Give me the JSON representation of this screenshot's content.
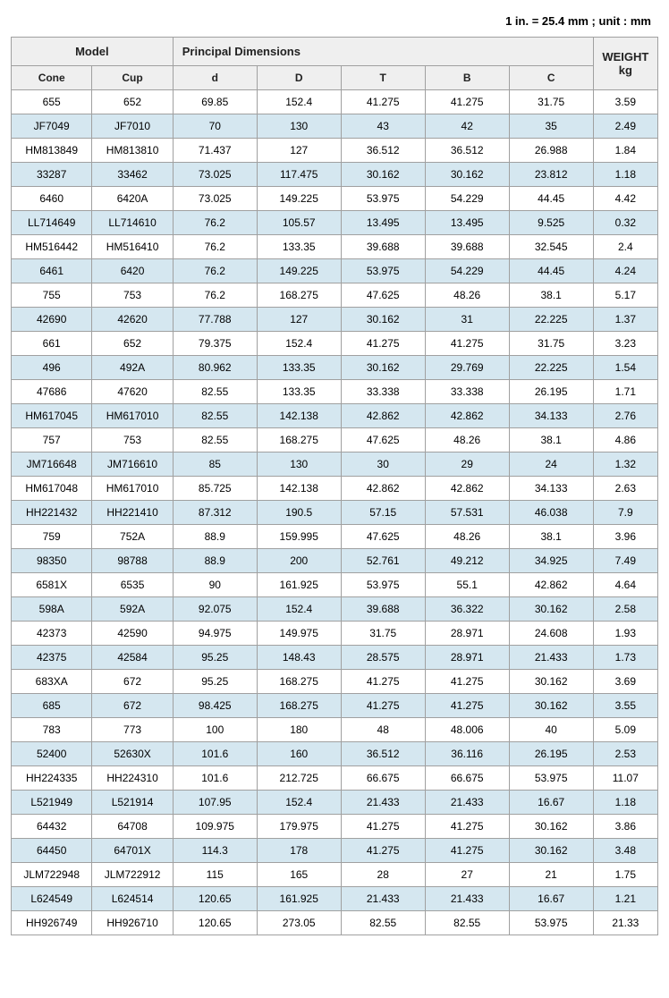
{
  "unit_note": "1 in. = 25.4 mm ; unit : mm",
  "headers": {
    "model": "Model",
    "principal": "Principal Dimensions",
    "weight_l1": "WEIGHT",
    "weight_l2": "kg",
    "cone": "Cone",
    "cup": "Cup",
    "d": "d",
    "D": "D",
    "T": "T",
    "B": "B",
    "C": "C"
  },
  "colors": {
    "header_bg": "#efefef",
    "even_row_bg": "#d5e7f0",
    "odd_row_bg": "#ffffff",
    "border": "#a0a0a0",
    "text": "#000000"
  },
  "rows": [
    {
      "cone": "655",
      "cup": "652",
      "d": "69.85",
      "D": "152.4",
      "T": "41.275",
      "B": "41.275",
      "C": "31.75",
      "wt": "3.59"
    },
    {
      "cone": "JF7049",
      "cup": "JF7010",
      "d": "70",
      "D": "130",
      "T": "43",
      "B": "42",
      "C": "35",
      "wt": "2.49"
    },
    {
      "cone": "HM813849",
      "cup": "HM813810",
      "d": "71.437",
      "D": "127",
      "T": "36.512",
      "B": "36.512",
      "C": "26.988",
      "wt": "1.84"
    },
    {
      "cone": "33287",
      "cup": "33462",
      "d": "73.025",
      "D": "117.475",
      "T": "30.162",
      "B": "30.162",
      "C": "23.812",
      "wt": "1.18"
    },
    {
      "cone": "6460",
      "cup": "6420A",
      "d": "73.025",
      "D": "149.225",
      "T": "53.975",
      "B": "54.229",
      "C": "44.45",
      "wt": "4.42"
    },
    {
      "cone": "LL714649",
      "cup": "LL714610",
      "d": "76.2",
      "D": "105.57",
      "T": "13.495",
      "B": "13.495",
      "C": "9.525",
      "wt": "0.32"
    },
    {
      "cone": "HM516442",
      "cup": "HM516410",
      "d": "76.2",
      "D": "133.35",
      "T": "39.688",
      "B": "39.688",
      "C": "32.545",
      "wt": "2.4"
    },
    {
      "cone": "6461",
      "cup": "6420",
      "d": "76.2",
      "D": "149.225",
      "T": "53.975",
      "B": "54.229",
      "C": "44.45",
      "wt": "4.24"
    },
    {
      "cone": "755",
      "cup": "753",
      "d": "76.2",
      "D": "168.275",
      "T": "47.625",
      "B": "48.26",
      "C": "38.1",
      "wt": "5.17"
    },
    {
      "cone": "42690",
      "cup": "42620",
      "d": "77.788",
      "D": "127",
      "T": "30.162",
      "B": "31",
      "C": "22.225",
      "wt": "1.37"
    },
    {
      "cone": "661",
      "cup": "652",
      "d": "79.375",
      "D": "152.4",
      "T": "41.275",
      "B": "41.275",
      "C": "31.75",
      "wt": "3.23"
    },
    {
      "cone": "496",
      "cup": "492A",
      "d": "80.962",
      "D": "133.35",
      "T": "30.162",
      "B": "29.769",
      "C": "22.225",
      "wt": "1.54"
    },
    {
      "cone": "47686",
      "cup": "47620",
      "d": "82.55",
      "D": "133.35",
      "T": "33.338",
      "B": "33.338",
      "C": "26.195",
      "wt": "1.71"
    },
    {
      "cone": "HM617045",
      "cup": "HM617010",
      "d": "82.55",
      "D": "142.138",
      "T": "42.862",
      "B": "42.862",
      "C": "34.133",
      "wt": "2.76"
    },
    {
      "cone": "757",
      "cup": "753",
      "d": "82.55",
      "D": "168.275",
      "T": "47.625",
      "B": "48.26",
      "C": "38.1",
      "wt": "4.86"
    },
    {
      "cone": "JM716648",
      "cup": "JM716610",
      "d": "85",
      "D": "130",
      "T": "30",
      "B": "29",
      "C": "24",
      "wt": "1.32"
    },
    {
      "cone": "HM617048",
      "cup": "HM617010",
      "d": "85.725",
      "D": "142.138",
      "T": "42.862",
      "B": "42.862",
      "C": "34.133",
      "wt": "2.63"
    },
    {
      "cone": "HH221432",
      "cup": "HH221410",
      "d": "87.312",
      "D": "190.5",
      "T": "57.15",
      "B": "57.531",
      "C": "46.038",
      "wt": "7.9"
    },
    {
      "cone": "759",
      "cup": "752A",
      "d": "88.9",
      "D": "159.995",
      "T": "47.625",
      "B": "48.26",
      "C": "38.1",
      "wt": "3.96"
    },
    {
      "cone": "98350",
      "cup": "98788",
      "d": "88.9",
      "D": "200",
      "T": "52.761",
      "B": "49.212",
      "C": "34.925",
      "wt": "7.49"
    },
    {
      "cone": "6581X",
      "cup": "6535",
      "d": "90",
      "D": "161.925",
      "T": "53.975",
      "B": "55.1",
      "C": "42.862",
      "wt": "4.64"
    },
    {
      "cone": "598A",
      "cup": "592A",
      "d": "92.075",
      "D": "152.4",
      "T": "39.688",
      "B": "36.322",
      "C": "30.162",
      "wt": "2.58"
    },
    {
      "cone": "42373",
      "cup": "42590",
      "d": "94.975",
      "D": "149.975",
      "T": "31.75",
      "B": "28.971",
      "C": "24.608",
      "wt": "1.93"
    },
    {
      "cone": "42375",
      "cup": "42584",
      "d": "95.25",
      "D": "148.43",
      "T": "28.575",
      "B": "28.971",
      "C": "21.433",
      "wt": "1.73"
    },
    {
      "cone": "683XA",
      "cup": "672",
      "d": "95.25",
      "D": "168.275",
      "T": "41.275",
      "B": "41.275",
      "C": "30.162",
      "wt": "3.69"
    },
    {
      "cone": "685",
      "cup": "672",
      "d": "98.425",
      "D": "168.275",
      "T": "41.275",
      "B": "41.275",
      "C": "30.162",
      "wt": "3.55"
    },
    {
      "cone": "783",
      "cup": "773",
      "d": "100",
      "D": "180",
      "T": "48",
      "B": "48.006",
      "C": "40",
      "wt": "5.09"
    },
    {
      "cone": "52400",
      "cup": "52630X",
      "d": "101.6",
      "D": "160",
      "T": "36.512",
      "B": "36.116",
      "C": "26.195",
      "wt": "2.53"
    },
    {
      "cone": "HH224335",
      "cup": "HH224310",
      "d": "101.6",
      "D": "212.725",
      "T": "66.675",
      "B": "66.675",
      "C": "53.975",
      "wt": "11.07"
    },
    {
      "cone": "L521949",
      "cup": "L521914",
      "d": "107.95",
      "D": "152.4",
      "T": "21.433",
      "B": "21.433",
      "C": "16.67",
      "wt": "1.18"
    },
    {
      "cone": "64432",
      "cup": "64708",
      "d": "109.975",
      "D": "179.975",
      "T": "41.275",
      "B": "41.275",
      "C": "30.162",
      "wt": "3.86"
    },
    {
      "cone": "64450",
      "cup": "64701X",
      "d": "114.3",
      "D": "178",
      "T": "41.275",
      "B": "41.275",
      "C": "30.162",
      "wt": "3.48"
    },
    {
      "cone": "JLM722948",
      "cup": "JLM722912",
      "d": "115",
      "D": "165",
      "T": "28",
      "B": "27",
      "C": "21",
      "wt": "1.75"
    },
    {
      "cone": "L624549",
      "cup": "L624514",
      "d": "120.65",
      "D": "161.925",
      "T": "21.433",
      "B": "21.433",
      "C": "16.67",
      "wt": "1.21"
    },
    {
      "cone": "HH926749",
      "cup": "HH926710",
      "d": "120.65",
      "D": "273.05",
      "T": "82.55",
      "B": "82.55",
      "C": "53.975",
      "wt": "21.33"
    }
  ]
}
